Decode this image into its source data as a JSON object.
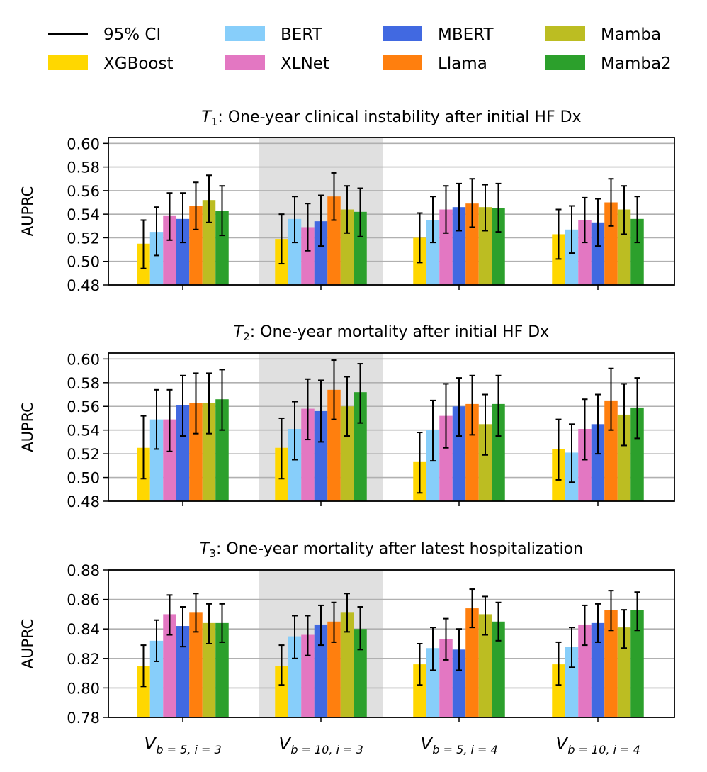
{
  "legend": {
    "ci_label": "95% CI",
    "items": [
      {
        "name": "XGBoost",
        "color": "#FFD700"
      },
      {
        "name": "BERT",
        "color": "#87CEFA"
      },
      {
        "name": "XLNet",
        "color": "#E377C2"
      },
      {
        "name": "MBERT",
        "color": "#4169E1"
      },
      {
        "name": "Llama",
        "color": "#FF7F0E"
      },
      {
        "name": "Mamba",
        "color": "#BCBD22"
      },
      {
        "name": "Mamba2",
        "color": "#2CA02C"
      }
    ]
  },
  "x_categories": [
    {
      "base": "V",
      "sub": "b = 5, i = 3"
    },
    {
      "base": "V",
      "sub": "b = 10, i = 3"
    },
    {
      "base": "V",
      "sub": "b = 5, i = 4"
    },
    {
      "base": "V",
      "sub": "b = 10, i = 4"
    }
  ],
  "chart_data": [
    {
      "type": "bar",
      "title_prefix": "T",
      "title_sub": "1",
      "title": ": One-year clinical instability after initial HF Dx",
      "ylabel": "AUPRC",
      "ylim": [
        0.48,
        0.605
      ],
      "yticks": [
        "0.48",
        "0.50",
        "0.52",
        "0.54",
        "0.56",
        "0.58",
        "0.60"
      ],
      "highlight_category": 1,
      "series": [
        {
          "name": "XGBoost",
          "values": [
            0.515,
            0.519,
            0.52,
            0.523
          ],
          "ci_low": [
            0.494,
            0.498,
            0.499,
            0.502
          ],
          "ci_high": [
            0.535,
            0.54,
            0.541,
            0.544
          ]
        },
        {
          "name": "BERT",
          "values": [
            0.525,
            0.536,
            0.535,
            0.527
          ],
          "ci_low": [
            0.505,
            0.516,
            0.516,
            0.507
          ],
          "ci_high": [
            0.546,
            0.555,
            0.555,
            0.547
          ]
        },
        {
          "name": "XLNet",
          "values": [
            0.539,
            0.529,
            0.544,
            0.535
          ],
          "ci_low": [
            0.518,
            0.509,
            0.524,
            0.516
          ],
          "ci_high": [
            0.558,
            0.549,
            0.564,
            0.554
          ]
        },
        {
          "name": "MBERT",
          "values": [
            0.536,
            0.534,
            0.546,
            0.533
          ],
          "ci_low": [
            0.516,
            0.513,
            0.526,
            0.513
          ],
          "ci_high": [
            0.558,
            0.556,
            0.566,
            0.553
          ]
        },
        {
          "name": "Llama",
          "values": [
            0.547,
            0.555,
            0.549,
            0.55
          ],
          "ci_low": [
            0.527,
            0.535,
            0.529,
            0.53
          ],
          "ci_high": [
            0.567,
            0.575,
            0.57,
            0.57
          ]
        },
        {
          "name": "Mamba",
          "values": [
            0.552,
            0.544,
            0.546,
            0.544
          ],
          "ci_low": [
            0.533,
            0.524,
            0.526,
            0.523
          ],
          "ci_high": [
            0.573,
            0.564,
            0.565,
            0.564
          ]
        },
        {
          "name": "Mamba2",
          "values": [
            0.543,
            0.542,
            0.545,
            0.536
          ],
          "ci_low": [
            0.522,
            0.521,
            0.525,
            0.516
          ],
          "ci_high": [
            0.564,
            0.562,
            0.566,
            0.555
          ]
        }
      ]
    },
    {
      "type": "bar",
      "title_prefix": "T",
      "title_sub": "2",
      "title": ": One-year mortality after initial HF Dx",
      "ylabel": "AUPRC",
      "ylim": [
        0.48,
        0.605
      ],
      "yticks": [
        "0.48",
        "0.50",
        "0.52",
        "0.54",
        "0.56",
        "0.58",
        "0.60"
      ],
      "highlight_category": 1,
      "series": [
        {
          "name": "XGBoost",
          "values": [
            0.525,
            0.525,
            0.513,
            0.524
          ],
          "ci_low": [
            0.499,
            0.499,
            0.487,
            0.498
          ],
          "ci_high": [
            0.552,
            0.55,
            0.538,
            0.549
          ]
        },
        {
          "name": "BERT",
          "values": [
            0.549,
            0.541,
            0.54,
            0.521
          ],
          "ci_low": [
            0.524,
            0.515,
            0.514,
            0.496
          ],
          "ci_high": [
            0.574,
            0.564,
            0.565,
            0.545
          ]
        },
        {
          "name": "XLNet",
          "values": [
            0.549,
            0.558,
            0.552,
            0.541
          ],
          "ci_low": [
            0.522,
            0.532,
            0.525,
            0.515
          ],
          "ci_high": [
            0.574,
            0.583,
            0.579,
            0.566
          ]
        },
        {
          "name": "MBERT",
          "values": [
            0.561,
            0.556,
            0.56,
            0.545
          ],
          "ci_low": [
            0.535,
            0.53,
            0.535,
            0.52
          ],
          "ci_high": [
            0.586,
            0.582,
            0.584,
            0.57
          ]
        },
        {
          "name": "Llama",
          "values": [
            0.563,
            0.574,
            0.562,
            0.565
          ],
          "ci_low": [
            0.537,
            0.549,
            0.536,
            0.54
          ],
          "ci_high": [
            0.588,
            0.599,
            0.586,
            0.592
          ]
        },
        {
          "name": "Mamba",
          "values": [
            0.563,
            0.56,
            0.545,
            0.553
          ],
          "ci_low": [
            0.537,
            0.535,
            0.519,
            0.527
          ],
          "ci_high": [
            0.588,
            0.585,
            0.57,
            0.579
          ]
        },
        {
          "name": "Mamba2",
          "values": [
            0.566,
            0.572,
            0.562,
            0.559
          ],
          "ci_low": [
            0.54,
            0.546,
            0.535,
            0.533
          ],
          "ci_high": [
            0.591,
            0.596,
            0.586,
            0.584
          ]
        }
      ]
    },
    {
      "type": "bar",
      "title_prefix": "T",
      "title_sub": "3",
      "title": ": One-year mortality after latest hospitalization",
      "ylabel": "AUPRC",
      "ylim": [
        0.78,
        0.88
      ],
      "yticks": [
        "0.78",
        "0.80",
        "0.82",
        "0.84",
        "0.86",
        "0.88"
      ],
      "highlight_category": 1,
      "series": [
        {
          "name": "XGBoost",
          "values": [
            0.815,
            0.815,
            0.816,
            0.816
          ],
          "ci_low": [
            0.801,
            0.802,
            0.802,
            0.802
          ],
          "ci_high": [
            0.829,
            0.829,
            0.83,
            0.831
          ]
        },
        {
          "name": "BERT",
          "values": [
            0.832,
            0.835,
            0.827,
            0.828
          ],
          "ci_low": [
            0.818,
            0.82,
            0.812,
            0.814
          ],
          "ci_high": [
            0.846,
            0.849,
            0.841,
            0.841
          ]
        },
        {
          "name": "XLNet",
          "values": [
            0.85,
            0.836,
            0.833,
            0.843
          ],
          "ci_low": [
            0.836,
            0.822,
            0.819,
            0.829
          ],
          "ci_high": [
            0.863,
            0.849,
            0.847,
            0.856
          ]
        },
        {
          "name": "MBERT",
          "values": [
            0.842,
            0.843,
            0.826,
            0.844
          ],
          "ci_low": [
            0.828,
            0.829,
            0.812,
            0.831
          ],
          "ci_high": [
            0.855,
            0.856,
            0.84,
            0.857
          ]
        },
        {
          "name": "Llama",
          "values": [
            0.851,
            0.845,
            0.854,
            0.853
          ],
          "ci_low": [
            0.838,
            0.831,
            0.841,
            0.839
          ],
          "ci_high": [
            0.864,
            0.858,
            0.867,
            0.866
          ]
        },
        {
          "name": "Mamba",
          "values": [
            0.844,
            0.851,
            0.85,
            0.841
          ],
          "ci_low": [
            0.83,
            0.838,
            0.836,
            0.827
          ],
          "ci_high": [
            0.857,
            0.864,
            0.862,
            0.853
          ]
        },
        {
          "name": "Mamba2",
          "values": [
            0.844,
            0.84,
            0.845,
            0.853
          ],
          "ci_low": [
            0.831,
            0.826,
            0.832,
            0.839
          ],
          "ci_high": [
            0.857,
            0.855,
            0.858,
            0.865
          ]
        }
      ]
    }
  ]
}
